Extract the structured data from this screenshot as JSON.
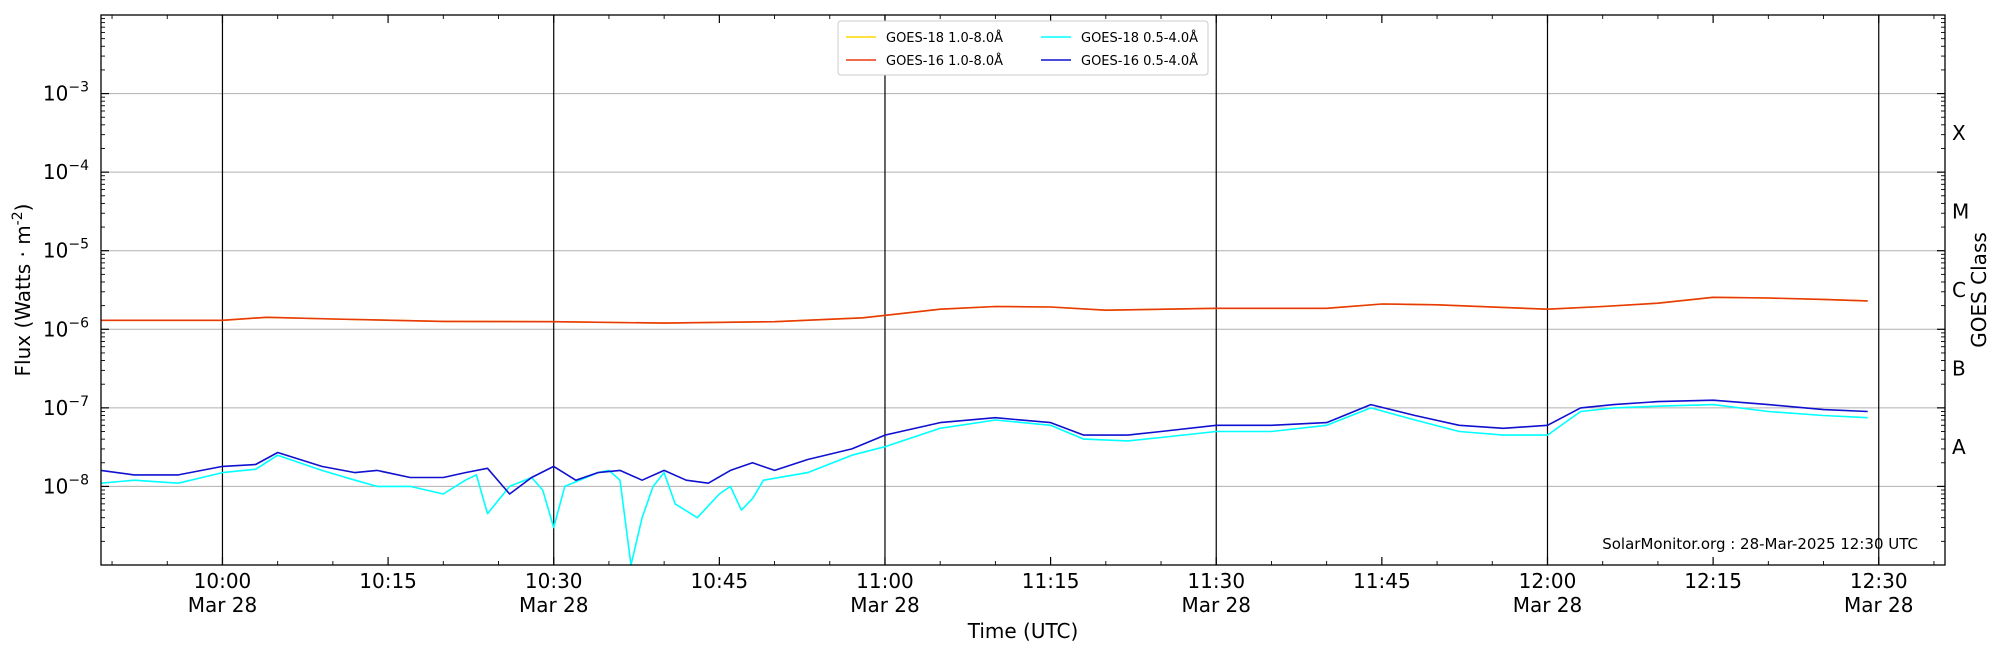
{
  "chart_data": {
    "type": "line",
    "xlabel": "Time (UTC)",
    "ylabel": "Flux (Watts · m⁻²)",
    "ylabel_main": "Flux (Watts · m",
    "ylabel_sup": "-2",
    "ylabel_close": ")",
    "right_label": "GOES Class",
    "credit": "SolarMonitor.org : 28-Mar-2025 12:30 UTC",
    "scale": "log",
    "ylim_exp": [
      -9,
      -2
    ],
    "xlim": [
      "09:49",
      "12:36"
    ],
    "grid": "horizontal at decades, vertical black lines at half-hours",
    "legend_position": "top-center",
    "y_ticks": [
      {
        "exp": -3,
        "base": "10",
        "sup": "−3"
      },
      {
        "exp": -4,
        "base": "10",
        "sup": "−4"
      },
      {
        "exp": -5,
        "base": "10",
        "sup": "−5"
      },
      {
        "exp": -6,
        "base": "10",
        "sup": "−6"
      },
      {
        "exp": -7,
        "base": "10",
        "sup": "−7"
      },
      {
        "exp": -8,
        "base": "10",
        "sup": "−8"
      }
    ],
    "x_ticks": [
      {
        "time": "10:00",
        "label": "10:00",
        "date": "Mar 28"
      },
      {
        "time": "10:15",
        "label": "10:15",
        "date": ""
      },
      {
        "time": "10:30",
        "label": "10:30",
        "date": "Mar 28"
      },
      {
        "time": "10:45",
        "label": "10:45",
        "date": ""
      },
      {
        "time": "11:00",
        "label": "11:00",
        "date": "Mar 28"
      },
      {
        "time": "11:15",
        "label": "11:15",
        "date": ""
      },
      {
        "time": "11:30",
        "label": "11:30",
        "date": "Mar 28"
      },
      {
        "time": "11:45",
        "label": "11:45",
        "date": ""
      },
      {
        "time": "12:00",
        "label": "12:00",
        "date": "Mar 28"
      },
      {
        "time": "12:15",
        "label": "12:15",
        "date": ""
      },
      {
        "time": "12:30",
        "label": "12:30",
        "date": "Mar 28"
      }
    ],
    "vlines": [
      "10:00",
      "10:30",
      "11:00",
      "11:30",
      "12:00",
      "12:30"
    ],
    "goes_classes": [
      {
        "label": "X",
        "exp": -3.5
      },
      {
        "label": "M",
        "exp": -4.5
      },
      {
        "label": "C",
        "exp": -5.5
      },
      {
        "label": "B",
        "exp": -6.5
      },
      {
        "label": "A",
        "exp": -7.5
      }
    ],
    "series": [
      {
        "name": "GOES-18 1.0-8.0Å",
        "color": "#ffd700",
        "x": [
          "09:49",
          "10:00",
          "10:04",
          "10:10",
          "10:20",
          "10:30",
          "10:40",
          "10:50",
          "10:58",
          "11:05",
          "11:10",
          "11:15",
          "11:20",
          "11:30",
          "11:40",
          "11:45",
          "11:50",
          "12:00",
          "12:05",
          "12:10",
          "12:15",
          "12:20",
          "12:25",
          "12:29"
        ],
        "y": [
          1.3e-06,
          1.3e-06,
          1.42e-06,
          1.35e-06,
          1.26e-06,
          1.25e-06,
          1.2e-06,
          1.25e-06,
          1.4e-06,
          1.8e-06,
          1.95e-06,
          1.92e-06,
          1.75e-06,
          1.85e-06,
          1.85e-06,
          2.1e-06,
          2.05e-06,
          1.8e-06,
          1.95e-06,
          2.15e-06,
          2.55e-06,
          2.5e-06,
          2.4e-06,
          2.3e-06
        ]
      },
      {
        "name": "GOES-16 1.0-8.0Å",
        "color": "#e8380d",
        "x": [
          "09:49",
          "10:00",
          "10:04",
          "10:10",
          "10:20",
          "10:30",
          "10:40",
          "10:50",
          "10:58",
          "11:05",
          "11:10",
          "11:15",
          "11:20",
          "11:30",
          "11:40",
          "11:45",
          "11:50",
          "12:00",
          "12:05",
          "12:10",
          "12:15",
          "12:20",
          "12:25",
          "12:29"
        ],
        "y": [
          1.3e-06,
          1.3e-06,
          1.42e-06,
          1.35e-06,
          1.26e-06,
          1.25e-06,
          1.2e-06,
          1.25e-06,
          1.4e-06,
          1.8e-06,
          1.95e-06,
          1.92e-06,
          1.75e-06,
          1.85e-06,
          1.85e-06,
          2.1e-06,
          2.05e-06,
          1.8e-06,
          1.95e-06,
          2.15e-06,
          2.55e-06,
          2.5e-06,
          2.4e-06,
          2.3e-06
        ]
      },
      {
        "name": "GOES-18 0.5-4.0Å",
        "color": "#00ffff",
        "x": [
          "09:49",
          "09:52",
          "09:56",
          "10:00",
          "10:03",
          "10:05",
          "10:09",
          "10:12",
          "10:14",
          "10:17",
          "10:20",
          "10:22",
          "10:23",
          "10:24",
          "10:26",
          "10:28",
          "10:29",
          "10:30",
          "10:31",
          "10:34",
          "10:35",
          "10:36",
          "10:37",
          "10:38",
          "10:39",
          "10:40",
          "10:41",
          "10:43",
          "10:45",
          "10:46",
          "10:47",
          "10:48",
          "10:49",
          "10:53",
          "10:57",
          "11:00",
          "11:05",
          "11:10",
          "11:15",
          "11:18",
          "11:22",
          "11:25",
          "11:30",
          "11:35",
          "11:40",
          "11:44",
          "11:48",
          "11:52",
          "11:56",
          "12:00",
          "12:03",
          "12:06",
          "12:10",
          "12:15",
          "12:20",
          "12:25",
          "12:29"
        ],
        "y": [
          1.1e-08,
          1.2e-08,
          1.1e-08,
          1.5e-08,
          1.65e-08,
          2.5e-08,
          1.6e-08,
          1.2e-08,
          1e-08,
          1e-08,
          8e-09,
          1.2e-08,
          1.4e-08,
          4.5e-09,
          1e-08,
          1.3e-08,
          9e-09,
          3e-09,
          1e-08,
          1.5e-08,
          1.6e-08,
          1.2e-08,
          1e-09,
          4e-09,
          1e-08,
          1.5e-08,
          6e-09,
          4e-09,
          8e-09,
          1e-08,
          5e-09,
          7e-09,
          1.2e-08,
          1.5e-08,
          2.5e-08,
          3.2e-08,
          5.5e-08,
          7e-08,
          6e-08,
          4e-08,
          3.8e-08,
          4.2e-08,
          5e-08,
          5e-08,
          6e-08,
          1e-07,
          7e-08,
          5e-08,
          4.5e-08,
          4.5e-08,
          9e-08,
          1e-07,
          1.05e-07,
          1.1e-07,
          9e-08,
          8e-08,
          7.5e-08
        ]
      },
      {
        "name": "GOES-16 0.5-4.0Å",
        "color": "#1010d0",
        "x": [
          "09:49",
          "09:52",
          "09:56",
          "10:00",
          "10:03",
          "10:05",
          "10:09",
          "10:12",
          "10:14",
          "10:17",
          "10:20",
          "10:22",
          "10:24",
          "10:26",
          "10:28",
          "10:30",
          "10:32",
          "10:34",
          "10:36",
          "10:38",
          "10:40",
          "10:42",
          "10:44",
          "10:46",
          "10:48",
          "10:50",
          "10:53",
          "10:57",
          "11:00",
          "11:05",
          "11:10",
          "11:15",
          "11:18",
          "11:22",
          "11:25",
          "11:30",
          "11:35",
          "11:40",
          "11:44",
          "11:48",
          "11:52",
          "11:56",
          "12:00",
          "12:03",
          "12:06",
          "12:10",
          "12:15",
          "12:20",
          "12:25",
          "12:29"
        ],
        "y": [
          1.6e-08,
          1.4e-08,
          1.4e-08,
          1.8e-08,
          1.9e-08,
          2.7e-08,
          1.8e-08,
          1.5e-08,
          1.6e-08,
          1.3e-08,
          1.3e-08,
          1.5e-08,
          1.7e-08,
          8e-09,
          1.3e-08,
          1.8e-08,
          1.2e-08,
          1.5e-08,
          1.6e-08,
          1.2e-08,
          1.6e-08,
          1.2e-08,
          1.1e-08,
          1.6e-08,
          2e-08,
          1.6e-08,
          2.2e-08,
          3e-08,
          4.5e-08,
          6.5e-08,
          7.5e-08,
          6.5e-08,
          4.5e-08,
          4.5e-08,
          5e-08,
          6e-08,
          6e-08,
          6.5e-08,
          1.1e-07,
          8e-08,
          6e-08,
          5.5e-08,
          6e-08,
          1e-07,
          1.1e-07,
          1.2e-07,
          1.25e-07,
          1.1e-07,
          9.5e-08,
          9e-08
        ]
      }
    ]
  }
}
